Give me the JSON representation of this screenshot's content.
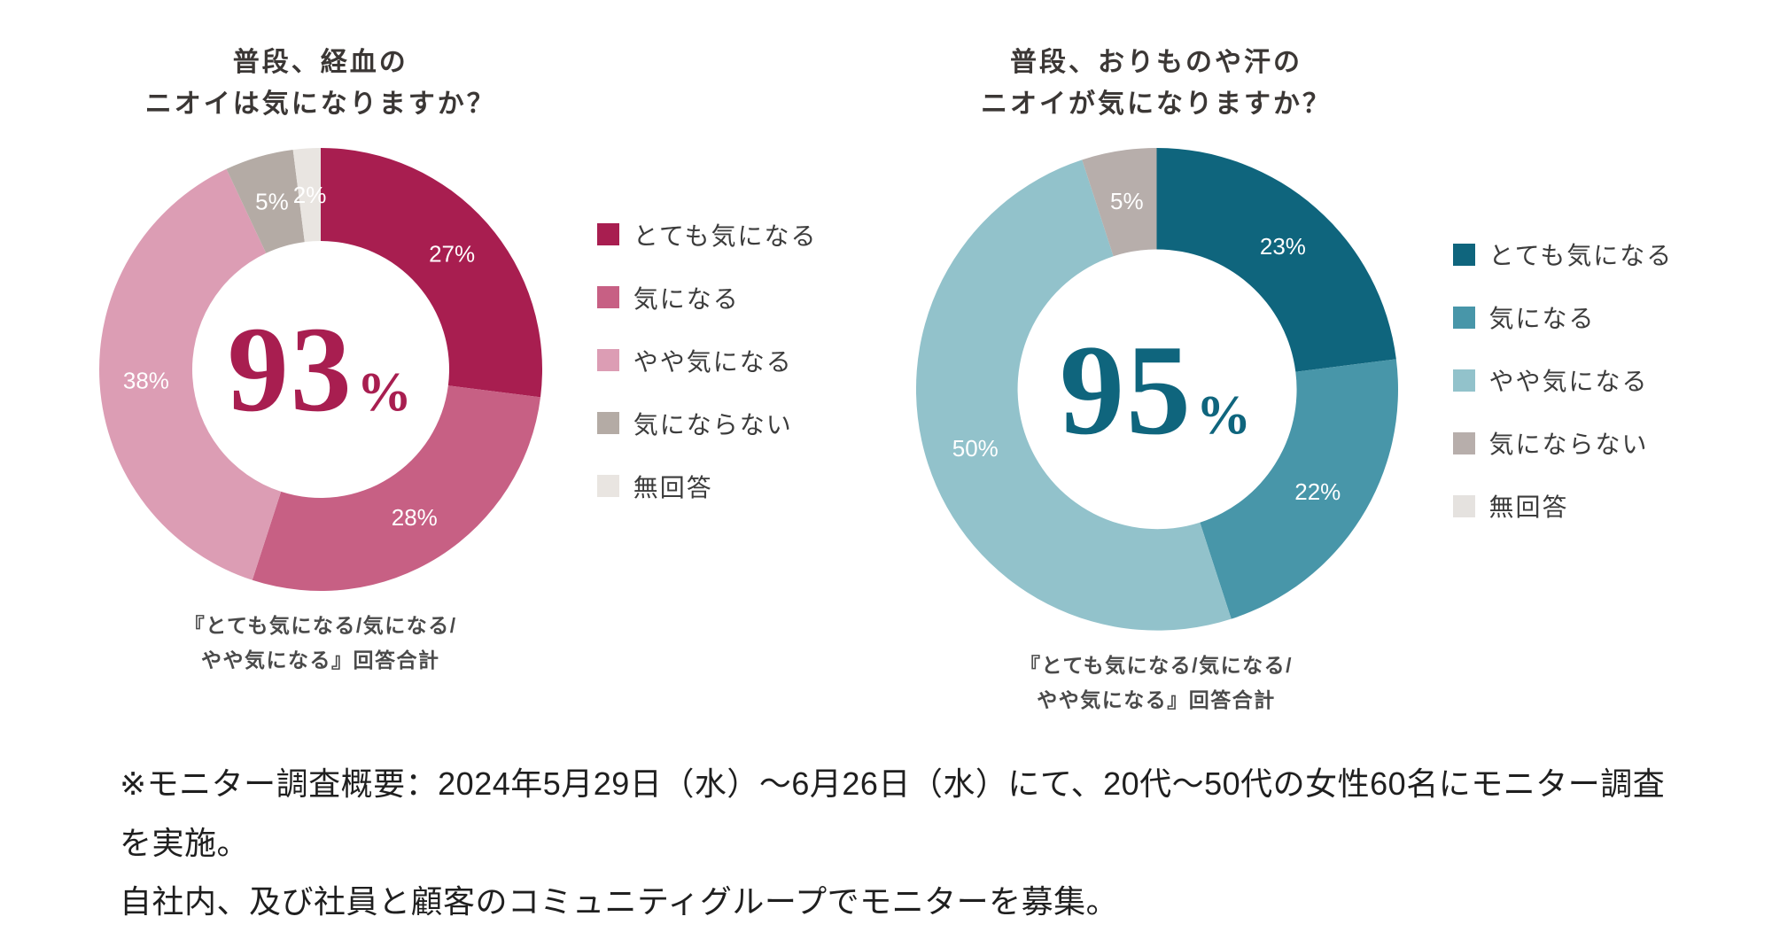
{
  "page": {
    "background": "#ffffff"
  },
  "note": {
    "text": "※モニター調査概要：2024年5月29日（水）～6月26日（水）にて、20代～50代の女性60名にモニター調査を実施。\n自社内、及び社員と顧客のコミュニティグループでモニターを募集。"
  },
  "chart_data": [
    {
      "type": "pie",
      "title": "普段、経血の\nニオイは気になりますか？",
      "center_value": "93",
      "center_unit": "%",
      "center_color": "#a81e50",
      "footnote": "『とても気になる/気になる/\nやや気になる』回答合計",
      "legend_position": "right",
      "start_angle_deg": -90,
      "segments": [
        {
          "label": "とても気になる",
          "value": 27,
          "pct_label": "27%",
          "color": "#a81e50",
          "pct_color": "#ffffff"
        },
        {
          "label": "気になる",
          "value": 28,
          "pct_label": "28%",
          "color": "#c76084",
          "pct_color": "#ffffff"
        },
        {
          "label": "やや気になる",
          "value": 38,
          "pct_label": "38%",
          "color": "#dc9db4",
          "pct_color": "#ffffff"
        },
        {
          "label": "気にならない",
          "value": 5,
          "pct_label": "5%",
          "color": "#b4aba5",
          "pct_color": "#ffffff"
        },
        {
          "label": "無回答",
          "value": 2,
          "pct_label": "2%",
          "color": "#e9e5e1",
          "pct_color": "#ffffff"
        }
      ]
    },
    {
      "type": "pie",
      "title": "普段、おりものや汗の\nニオイが気になりますか？",
      "center_value": "95",
      "center_unit": "%",
      "center_color": "#0f657d",
      "footnote": "『とても気になる/気になる/\nやや気になる』回答合計",
      "legend_position": "right",
      "start_angle_deg": -90,
      "segments": [
        {
          "label": "とても気になる",
          "value": 23,
          "pct_label": "23%",
          "color": "#0f657d",
          "pct_color": "#ffffff"
        },
        {
          "label": "気になる",
          "value": 22,
          "pct_label": "22%",
          "color": "#4896a9",
          "pct_color": "#ffffff"
        },
        {
          "label": "やや気になる",
          "value": 50,
          "pct_label": "50%",
          "color": "#92c2cb",
          "pct_color": "#ffffff"
        },
        {
          "label": "気にならない",
          "value": 5,
          "pct_label": "5%",
          "color": "#b7aeab",
          "pct_color": "#ffffff"
        },
        {
          "label": "無回答",
          "value": 0,
          "pct_label": "",
          "color": "#e5e2df",
          "pct_color": "#ffffff"
        }
      ]
    }
  ]
}
